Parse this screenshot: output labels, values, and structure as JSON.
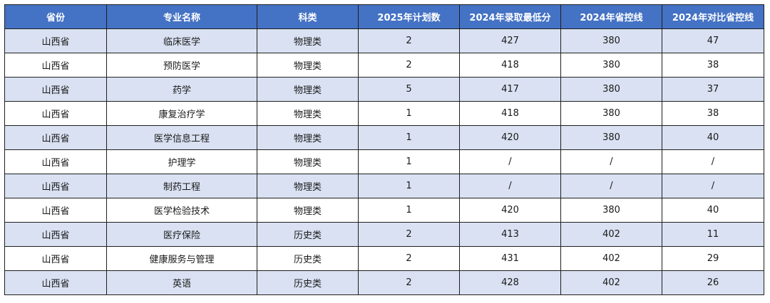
{
  "headers": [
    "省份",
    "专业名称",
    "科类",
    "2025年计划数",
    "2024年录取最低分",
    "2024年省控线",
    "2024年对比省控线"
  ],
  "rows": [
    [
      "山西省",
      "临床医学",
      "物理类",
      "2",
      "427",
      "380",
      "47"
    ],
    [
      "山西省",
      "预防医学",
      "物理类",
      "2",
      "418",
      "380",
      "38"
    ],
    [
      "山西省",
      "药学",
      "物理类",
      "5",
      "417",
      "380",
      "37"
    ],
    [
      "山西省",
      "康复治疗学",
      "物理类",
      "1",
      "418",
      "380",
      "38"
    ],
    [
      "山西省",
      "医学信息工程",
      "物理类",
      "1",
      "420",
      "380",
      "40"
    ],
    [
      "山西省",
      "护理学",
      "物理类",
      "1",
      "/",
      "/",
      "/"
    ],
    [
      "山西省",
      "制药工程",
      "物理类",
      "1",
      "/",
      "/",
      "/"
    ],
    [
      "山西省",
      "医学检验技术",
      "物理类",
      "1",
      "420",
      "380",
      "40"
    ],
    [
      "山西省",
      "医疗保险",
      "历史类",
      "2",
      "413",
      "402",
      "11"
    ],
    [
      "山西省",
      "健康服务与管理",
      "历史类",
      "2",
      "431",
      "402",
      "29"
    ],
    [
      "山西省",
      "英语",
      "历史类",
      "2",
      "428",
      "402",
      "26"
    ]
  ],
  "colors": {
    "header_bg": "#4472c4",
    "header_text": "#ffffff",
    "stripe_bg": "#d9e1f2",
    "border": "#1f1f1f"
  }
}
